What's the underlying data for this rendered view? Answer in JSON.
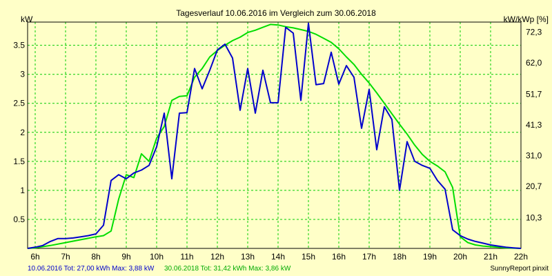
{
  "chart_data": {
    "type": "line",
    "title": "Tagesverlauf 10.06.2016 im Vergleich zum 30.06.2018",
    "ylabel_left": "kW",
    "ylabel_right": "kW/kWp [%]",
    "xlim": [
      5.75,
      22.0
    ],
    "ylim": [
      0,
      3.9
    ],
    "grid": true,
    "x_ticks": [
      {
        "x": 6,
        "label": "6h"
      },
      {
        "x": 7,
        "label": "7h"
      },
      {
        "x": 8,
        "label": "8h"
      },
      {
        "x": 9,
        "label": "9h"
      },
      {
        "x": 10,
        "label": "10h"
      },
      {
        "x": 11,
        "label": "11h"
      },
      {
        "x": 12,
        "label": "12h"
      },
      {
        "x": 13,
        "label": "13h"
      },
      {
        "x": 14,
        "label": "14h"
      },
      {
        "x": 15,
        "label": "15h"
      },
      {
        "x": 16,
        "label": "16h"
      },
      {
        "x": 17,
        "label": "17h"
      },
      {
        "x": 18,
        "label": "18h"
      },
      {
        "x": 19,
        "label": "19h"
      },
      {
        "x": 20,
        "label": "20h"
      },
      {
        "x": 21,
        "label": "21h"
      },
      {
        "x": 22,
        "label": "22h"
      }
    ],
    "y_ticks_left": [
      {
        "y": 0.5,
        "label": "0.5"
      },
      {
        "y": 1.0,
        "label": "1"
      },
      {
        "y": 1.5,
        "label": "1.5"
      },
      {
        "y": 2.0,
        "label": "2"
      },
      {
        "y": 2.5,
        "label": "2.5"
      },
      {
        "y": 3.0,
        "label": "3"
      },
      {
        "y": 3.5,
        "label": "3.5"
      }
    ],
    "y_ticks_right": [
      {
        "y": 0.53,
        "label": "10,3"
      },
      {
        "y": 1.07,
        "label": "20,7"
      },
      {
        "y": 1.6,
        "label": "31,0"
      },
      {
        "y": 2.13,
        "label": "41,3"
      },
      {
        "y": 2.66,
        "label": "51,7"
      },
      {
        "y": 3.2,
        "label": "62,0"
      },
      {
        "y": 3.73,
        "label": "72,3"
      }
    ],
    "series": [
      {
        "name": "10.06.2016",
        "color": "#0000cc",
        "legend": "10.06.2016 Tot: 27,00 kWh Max: 3,88 kW",
        "points": [
          [
            5.75,
            0
          ],
          [
            6.0,
            0.02
          ],
          [
            6.25,
            0.05
          ],
          [
            6.5,
            0.12
          ],
          [
            6.75,
            0.17
          ],
          [
            7.0,
            0.17
          ],
          [
            7.25,
            0.18
          ],
          [
            7.5,
            0.2
          ],
          [
            7.75,
            0.22
          ],
          [
            8.0,
            0.25
          ],
          [
            8.25,
            0.4
          ],
          [
            8.5,
            1.17
          ],
          [
            8.75,
            1.27
          ],
          [
            9.0,
            1.2
          ],
          [
            9.25,
            1.3
          ],
          [
            9.5,
            1.35
          ],
          [
            9.75,
            1.43
          ],
          [
            10.0,
            1.75
          ],
          [
            10.25,
            2.33
          ],
          [
            10.5,
            1.2
          ],
          [
            10.75,
            2.33
          ],
          [
            11.0,
            2.34
          ],
          [
            11.25,
            3.1
          ],
          [
            11.5,
            2.75
          ],
          [
            11.75,
            3.07
          ],
          [
            12.0,
            3.42
          ],
          [
            12.25,
            3.52
          ],
          [
            12.5,
            3.28
          ],
          [
            12.75,
            2.38
          ],
          [
            13.0,
            3.1
          ],
          [
            13.25,
            2.33
          ],
          [
            13.5,
            3.07
          ],
          [
            13.75,
            2.51
          ],
          [
            14.0,
            2.51
          ],
          [
            14.25,
            3.81
          ],
          [
            14.5,
            3.71
          ],
          [
            14.75,
            2.55
          ],
          [
            15.0,
            3.88
          ],
          [
            15.25,
            2.82
          ],
          [
            15.5,
            2.84
          ],
          [
            15.75,
            3.38
          ],
          [
            16.0,
            2.83
          ],
          [
            16.25,
            3.15
          ],
          [
            16.5,
            2.95
          ],
          [
            16.75,
            2.07
          ],
          [
            17.0,
            2.74
          ],
          [
            17.25,
            1.7
          ],
          [
            17.5,
            2.44
          ],
          [
            17.75,
            2.22
          ],
          [
            18.0,
            1.0
          ],
          [
            18.25,
            1.84
          ],
          [
            18.5,
            1.5
          ],
          [
            18.75,
            1.43
          ],
          [
            19.0,
            1.38
          ],
          [
            19.25,
            1.17
          ],
          [
            19.5,
            1.02
          ],
          [
            19.75,
            0.32
          ],
          [
            20.0,
            0.22
          ],
          [
            20.25,
            0.16
          ],
          [
            20.5,
            0.12
          ],
          [
            20.75,
            0.09
          ],
          [
            21.0,
            0.06
          ],
          [
            21.25,
            0.04
          ],
          [
            21.5,
            0.02
          ],
          [
            21.75,
            0.01
          ],
          [
            22.0,
            0
          ]
        ]
      },
      {
        "name": "30.06.2018",
        "color": "#00dd00",
        "legend": "30.06.2018 Tot: 31,42 kWh Max: 3,86 kW",
        "points": [
          [
            5.75,
            0
          ],
          [
            6.0,
            0.01
          ],
          [
            6.5,
            0.05
          ],
          [
            7.0,
            0.1
          ],
          [
            7.5,
            0.15
          ],
          [
            8.0,
            0.2
          ],
          [
            8.25,
            0.22
          ],
          [
            8.5,
            0.3
          ],
          [
            8.75,
            0.85
          ],
          [
            9.0,
            1.27
          ],
          [
            9.25,
            1.22
          ],
          [
            9.5,
            1.63
          ],
          [
            9.75,
            1.5
          ],
          [
            10.0,
            1.9
          ],
          [
            10.25,
            2.1
          ],
          [
            10.5,
            2.55
          ],
          [
            10.75,
            2.62
          ],
          [
            11.0,
            2.63
          ],
          [
            11.25,
            2.95
          ],
          [
            11.5,
            3.1
          ],
          [
            11.75,
            3.3
          ],
          [
            12.0,
            3.41
          ],
          [
            12.25,
            3.5
          ],
          [
            12.5,
            3.58
          ],
          [
            12.75,
            3.64
          ],
          [
            13.0,
            3.72
          ],
          [
            13.25,
            3.76
          ],
          [
            13.5,
            3.81
          ],
          [
            13.75,
            3.86
          ],
          [
            14.0,
            3.85
          ],
          [
            14.25,
            3.82
          ],
          [
            14.5,
            3.8
          ],
          [
            14.75,
            3.77
          ],
          [
            15.0,
            3.74
          ],
          [
            15.25,
            3.69
          ],
          [
            15.5,
            3.62
          ],
          [
            15.75,
            3.55
          ],
          [
            16.0,
            3.44
          ],
          [
            16.25,
            3.3
          ],
          [
            16.5,
            3.17
          ],
          [
            16.75,
            3.0
          ],
          [
            17.0,
            2.85
          ],
          [
            17.25,
            2.68
          ],
          [
            17.5,
            2.5
          ],
          [
            17.75,
            2.32
          ],
          [
            18.0,
            2.14
          ],
          [
            18.25,
            1.97
          ],
          [
            18.5,
            1.78
          ],
          [
            18.75,
            1.62
          ],
          [
            19.0,
            1.5
          ],
          [
            19.25,
            1.42
          ],
          [
            19.5,
            1.32
          ],
          [
            19.75,
            1.05
          ],
          [
            20.0,
            0.2
          ],
          [
            20.25,
            0.1
          ],
          [
            20.5,
            0.06
          ],
          [
            20.75,
            0.04
          ],
          [
            21.0,
            0.03
          ],
          [
            21.25,
            0.02
          ],
          [
            21.5,
            0.01
          ],
          [
            22.0,
            0
          ]
        ]
      }
    ],
    "footer_right": "SunnyReport pinxit"
  }
}
